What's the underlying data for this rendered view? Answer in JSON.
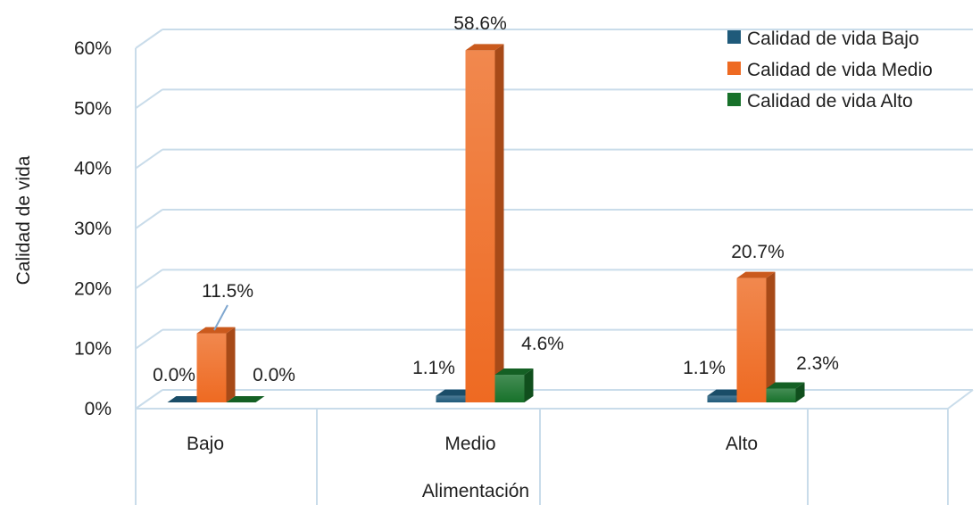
{
  "chart_data": {
    "type": "bar",
    "style": "3d-clustered-column",
    "categories": [
      "Bajo",
      "Medio",
      "Alto"
    ],
    "series": [
      {
        "name": "Calidad de vida Bajo",
        "values": [
          0.0,
          1.1,
          1.1
        ],
        "labels": [
          "0.0%",
          "1.1%",
          "1.1%"
        ],
        "color": "#1f5a7a"
      },
      {
        "name": "Calidad de vida Medio",
        "values": [
          11.5,
          58.6,
          20.7
        ],
        "labels": [
          "11.5%",
          "58.6%",
          "20.7%"
        ],
        "color": "#ee6a22"
      },
      {
        "name": "Calidad de vida Alto",
        "values": [
          0.0,
          4.6,
          2.3
        ],
        "labels": [
          "0.0%",
          "4.6%",
          "2.3%"
        ],
        "color": "#17712a"
      }
    ],
    "yticks": [
      "0%",
      "10%",
      "20%",
      "30%",
      "40%",
      "50%",
      "60%"
    ],
    "ylim": [
      0,
      60
    ],
    "xlabel": "Alimentación",
    "ylabel": "Calidad de vida",
    "legend": "top-right",
    "grid": true,
    "gridline_color": "#c9dcea"
  }
}
